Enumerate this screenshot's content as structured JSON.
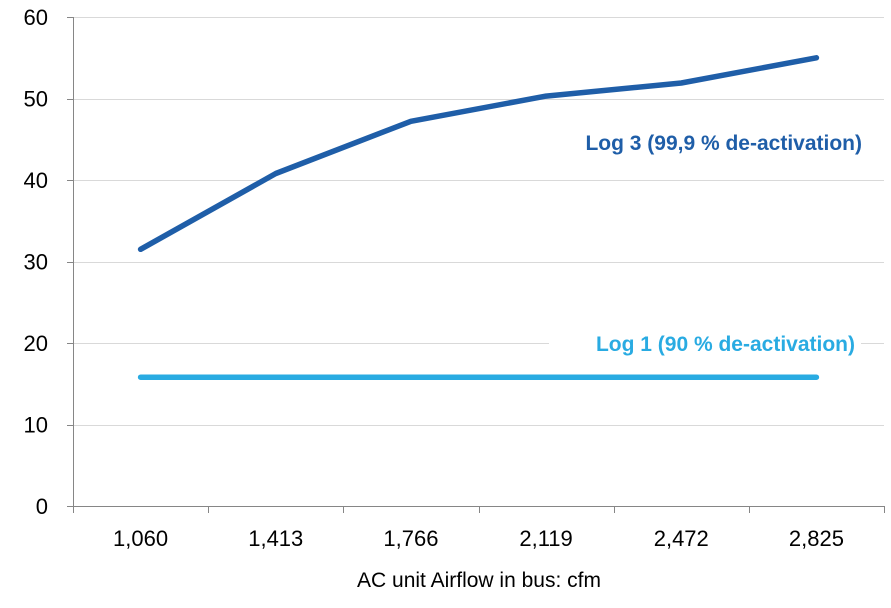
{
  "chart_data": {
    "type": "line",
    "title": "",
    "xlabel": "AC unit Airflow in bus: cfm",
    "ylabel": "",
    "categories": [
      "1,060",
      "1,413",
      "1,766",
      "2,119",
      "2,472",
      "2,825"
    ],
    "ylim": [
      0,
      60
    ],
    "yticks": [
      0,
      10,
      20,
      30,
      40,
      50,
      60
    ],
    "ytick_labels": [
      "0",
      "10",
      "20",
      "30",
      "40",
      "50",
      "60"
    ],
    "grid": "horizontal",
    "legend": "none",
    "series": [
      {
        "name": "Log 3 (99,9 % de-activation)",
        "values": [
          31.5,
          40.8,
          47.2,
          50.3,
          51.9,
          55.0
        ],
        "color": "#1f5ea8"
      },
      {
        "name": "Log 1 (90 % de-activation)",
        "values": [
          15.8,
          15.8,
          15.8,
          15.8,
          15.8,
          15.8
        ],
        "color": "#29abe2"
      }
    ]
  }
}
